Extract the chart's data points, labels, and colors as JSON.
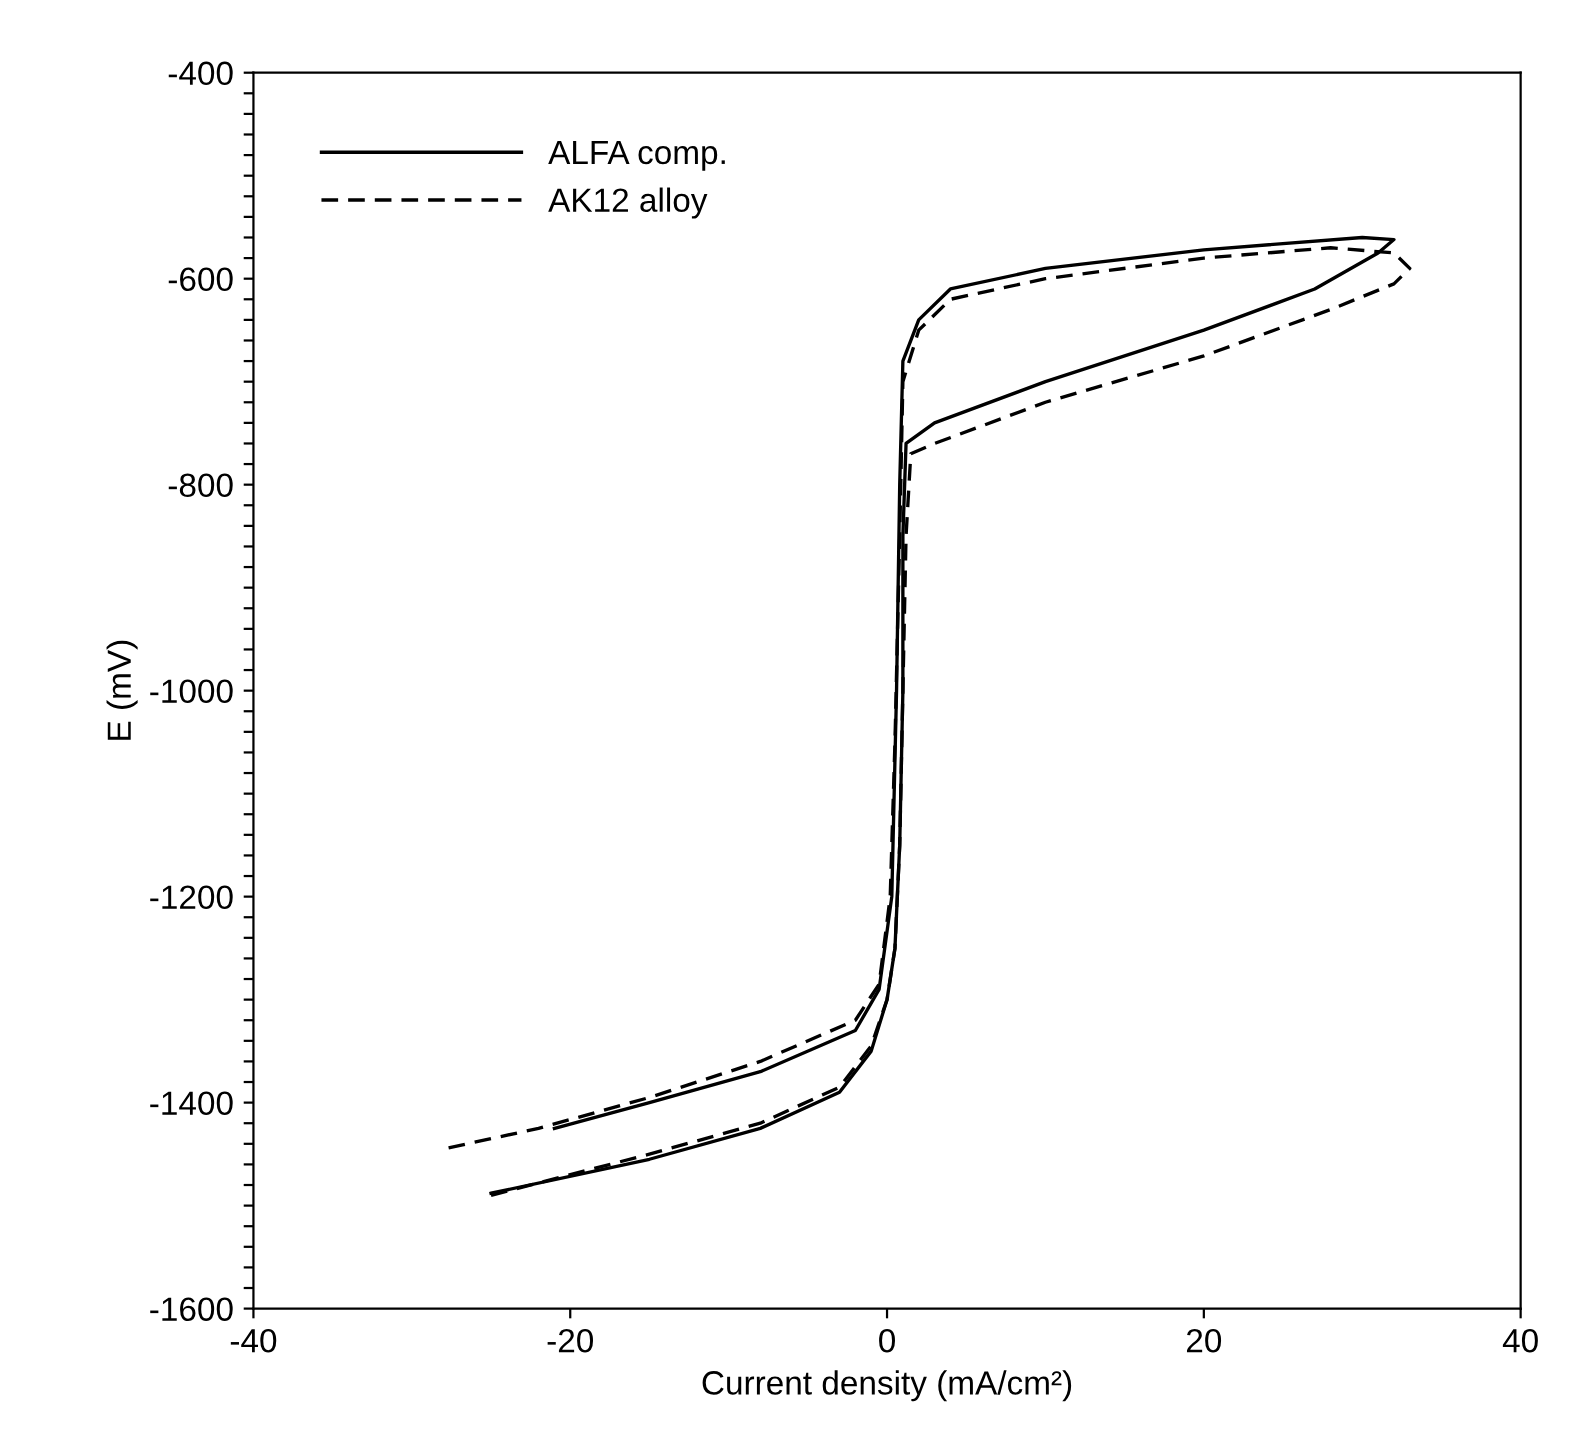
{
  "chart_data": {
    "type": "line",
    "xlabel": "Current density (mA/cm²)",
    "ylabel": "E (mV)",
    "xlim": [
      -40,
      40
    ],
    "ylim": [
      -1600,
      -400
    ],
    "xticks": [
      -40,
      -20,
      0,
      20,
      40
    ],
    "yticks": [
      -1600,
      {
        "value": -1580,
        "label": null
      },
      {
        "value": -1560,
        "label": null
      },
      {
        "value": -1540,
        "label": null
      },
      {
        "value": -1520,
        "label": null
      },
      {
        "value": -1500,
        "label": null
      },
      {
        "value": -1480,
        "label": null
      },
      {
        "value": -1460,
        "label": null
      },
      {
        "value": -1440,
        "label": null
      },
      {
        "value": -1420,
        "label": null
      },
      -1400,
      {
        "value": -1380,
        "label": null
      },
      {
        "value": -1360,
        "label": null
      },
      {
        "value": -1340,
        "label": null
      },
      {
        "value": -1320,
        "label": null
      },
      {
        "value": -1300,
        "label": null
      },
      {
        "value": -1280,
        "label": null
      },
      {
        "value": -1260,
        "label": null
      },
      {
        "value": -1240,
        "label": null
      },
      {
        "value": -1220,
        "label": null
      },
      -1200,
      {
        "value": -1180,
        "label": null
      },
      {
        "value": -1160,
        "label": null
      },
      {
        "value": -1140,
        "label": null
      },
      {
        "value": -1120,
        "label": null
      },
      {
        "value": -1100,
        "label": null
      },
      {
        "value": -1080,
        "label": null
      },
      {
        "value": -1060,
        "label": null
      },
      {
        "value": -1040,
        "label": null
      },
      {
        "value": -1020,
        "label": null
      },
      -1000,
      {
        "value": -980,
        "label": null
      },
      {
        "value": -960,
        "label": null
      },
      {
        "value": -940,
        "label": null
      },
      {
        "value": -920,
        "label": null
      },
      {
        "value": -900,
        "label": null
      },
      {
        "value": -880,
        "label": null
      },
      {
        "value": -860,
        "label": null
      },
      {
        "value": -840,
        "label": null
      },
      {
        "value": -820,
        "label": null
      },
      -800,
      {
        "value": -780,
        "label": null
      },
      {
        "value": -760,
        "label": null
      },
      {
        "value": -740,
        "label": null
      },
      {
        "value": -720,
        "label": null
      },
      {
        "value": -700,
        "label": null
      },
      {
        "value": -680,
        "label": null
      },
      {
        "value": -660,
        "label": null
      },
      {
        "value": -640,
        "label": null
      },
      {
        "value": -620,
        "label": null
      },
      -600,
      {
        "value": -580,
        "label": null
      },
      {
        "value": -560,
        "label": null
      },
      {
        "value": -540,
        "label": null
      },
      {
        "value": -520,
        "label": null
      },
      {
        "value": -500,
        "label": null
      },
      {
        "value": -480,
        "label": null
      },
      {
        "value": -460,
        "label": null
      },
      {
        "value": -440,
        "label": null
      },
      {
        "value": -420,
        "label": null
      },
      -400
    ],
    "grid": false,
    "legend": "top left",
    "marker": "none",
    "series": [
      {
        "name": "ALFA comp.",
        "color": "#000000",
        "line_style": "solid",
        "x": [
          -25,
          -15,
          -8,
          -3,
          -1,
          0,
          0.5,
          0.8,
          1,
          1,
          1.2,
          3,
          10,
          20,
          27,
          31,
          32,
          30,
          20,
          10,
          4,
          2,
          1,
          0.8,
          0.6,
          0.3,
          -0.5,
          -2,
          -8,
          -15,
          -21
        ],
        "values": [
          -1488,
          -1455,
          -1425,
          -1390,
          -1350,
          -1300,
          -1250,
          -1150,
          -1000,
          -850,
          -760,
          -740,
          -700,
          -650,
          -610,
          -575,
          -562,
          -560,
          -572,
          -590,
          -610,
          -640,
          -680,
          -800,
          -1000,
          -1200,
          -1290,
          -1330,
          -1370,
          -1400,
          -1425
        ]
      },
      {
        "name": "AK12 alloy",
        "color": "#000000",
        "line_style": "dashed",
        "x": [
          -25,
          -15,
          -8,
          -3,
          -1,
          0,
          0.5,
          0.8,
          1,
          1.2,
          1.5,
          3,
          10,
          20,
          28,
          32,
          33,
          32,
          28,
          20,
          10,
          4,
          2,
          1,
          0.8,
          0.5,
          0.2,
          -0.5,
          -2,
          -8,
          -15,
          -22,
          -28
        ],
        "values": [
          -1490,
          -1450,
          -1420,
          -1385,
          -1345,
          -1300,
          -1250,
          -1150,
          -1000,
          -850,
          -770,
          -760,
          -720,
          -675,
          -630,
          -605,
          -590,
          -575,
          -570,
          -580,
          -600,
          -620,
          -650,
          -700,
          -850,
          -1050,
          -1200,
          -1285,
          -1320,
          -1360,
          -1395,
          -1425,
          -1445
        ]
      }
    ]
  }
}
